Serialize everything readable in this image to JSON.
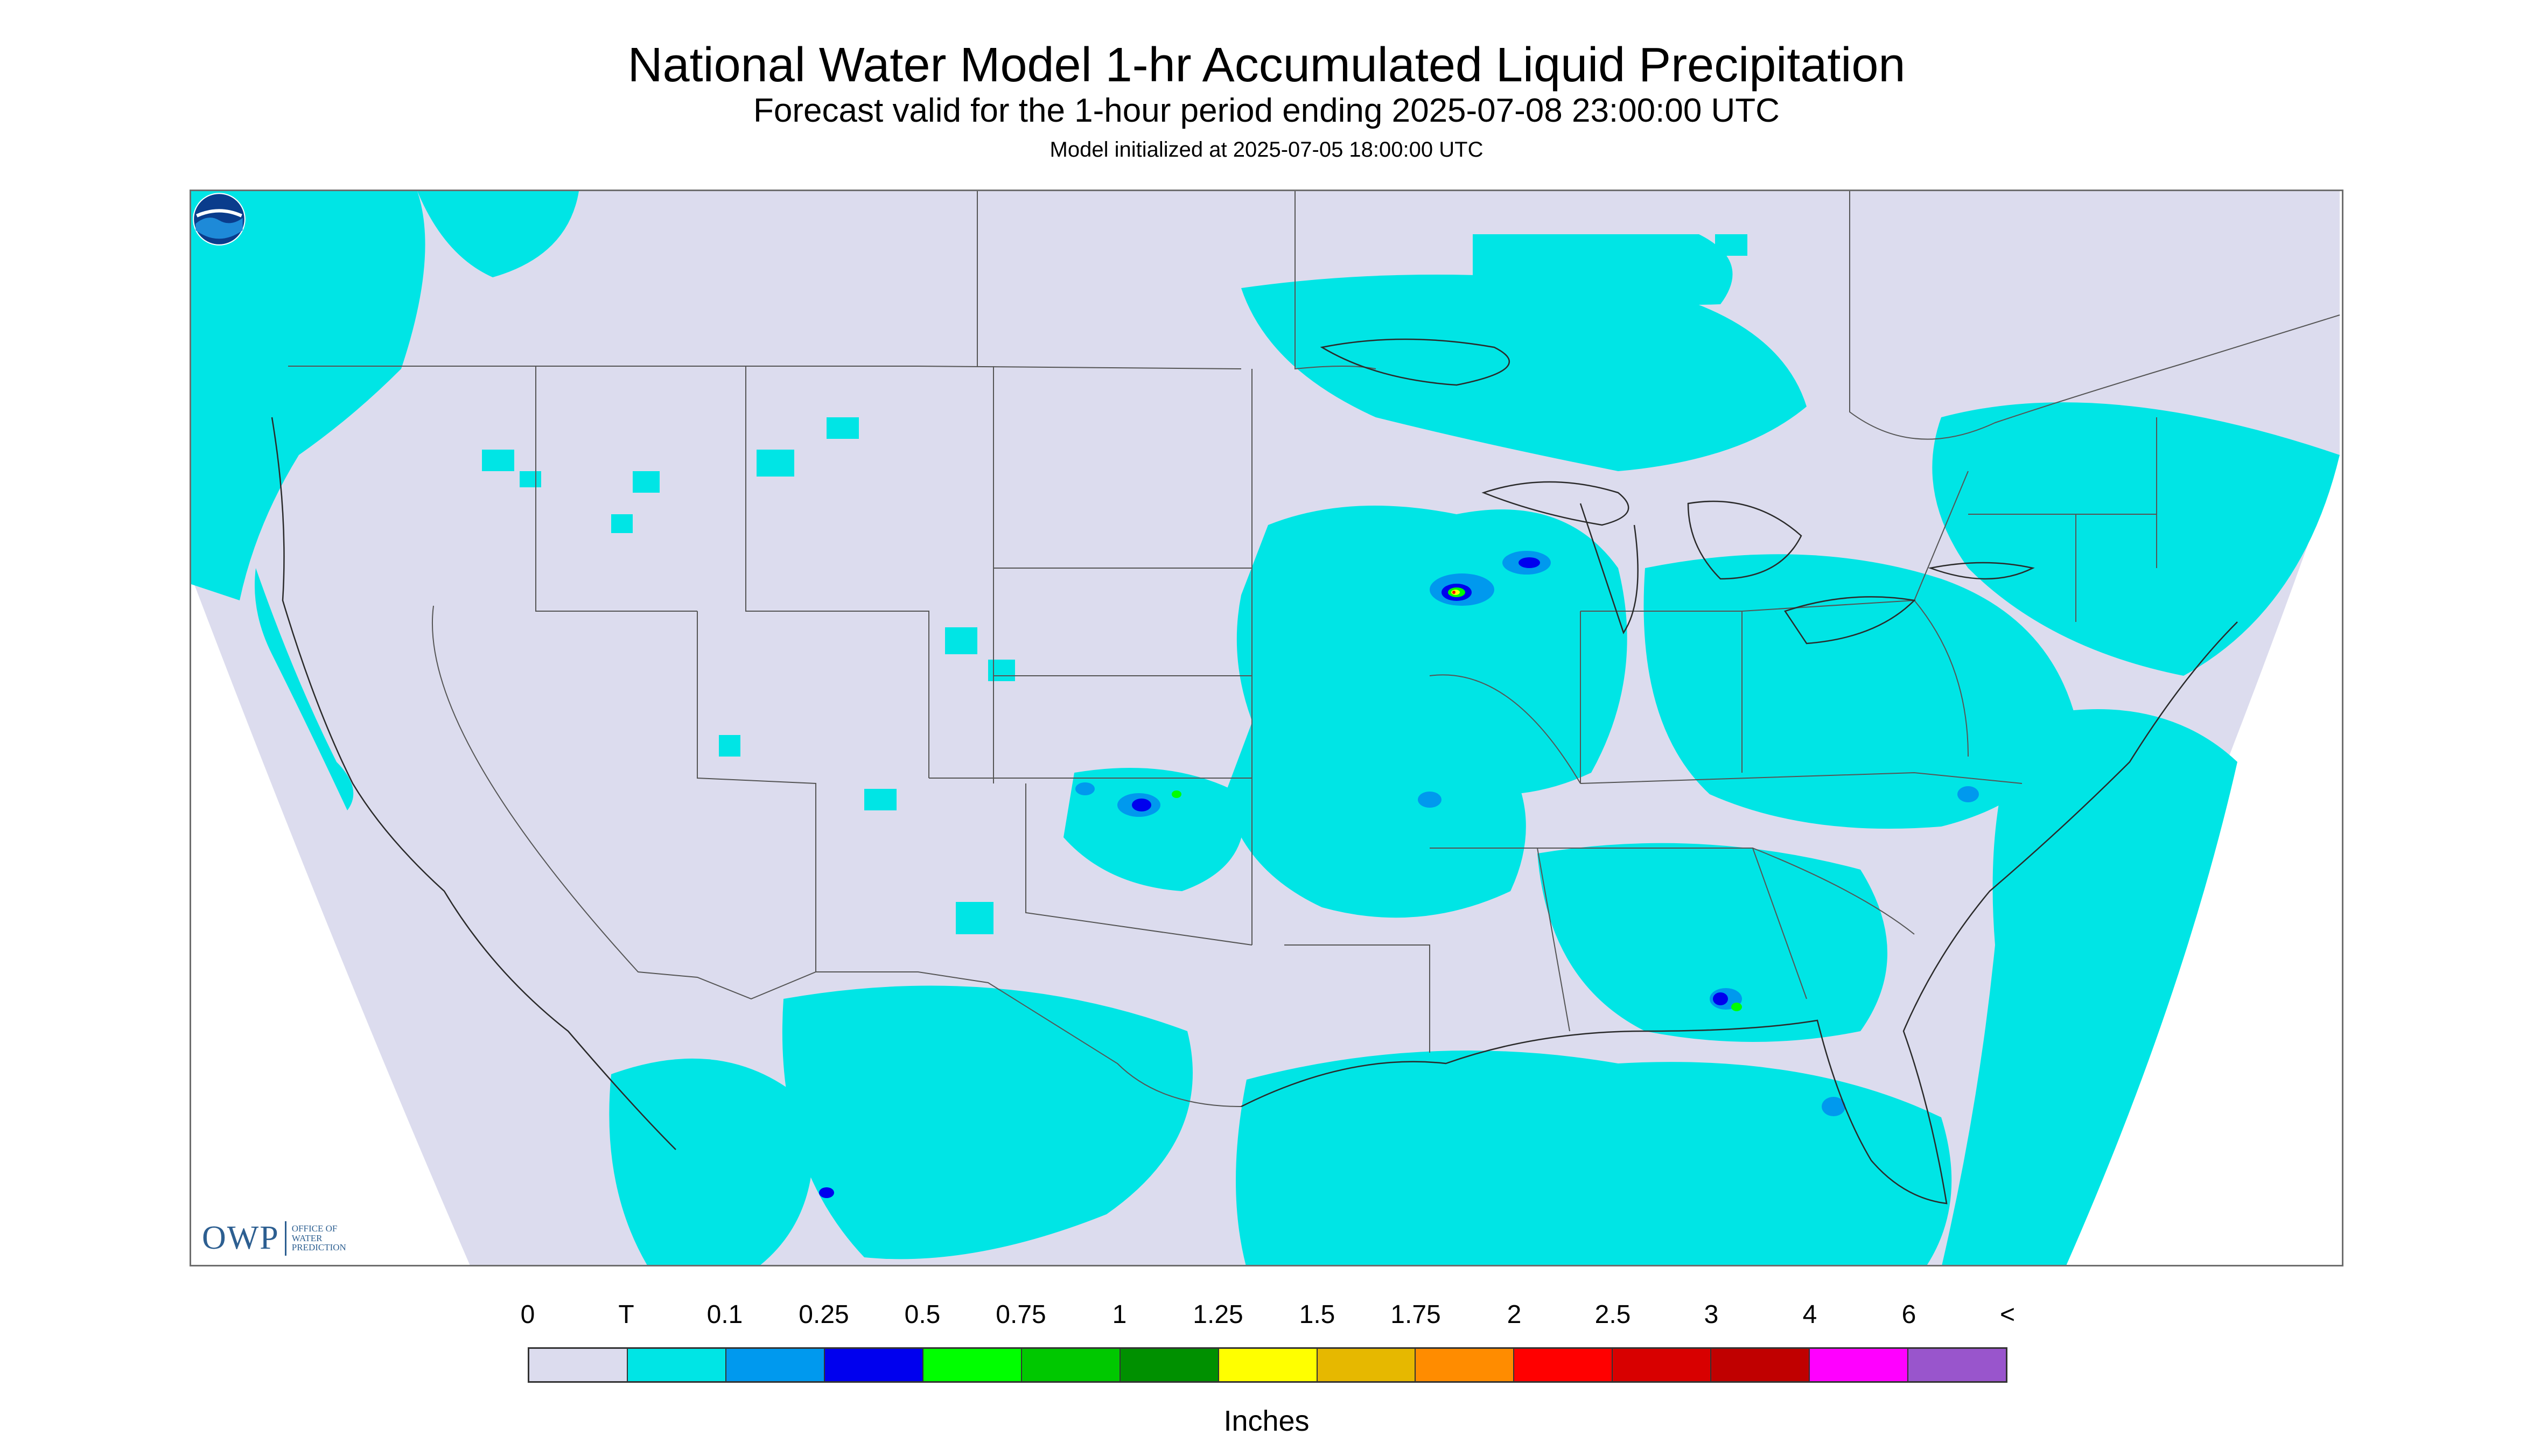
{
  "header": {
    "title": "National Water Model 1-hr Accumulated Liquid Precipitation",
    "subtitle": "Forecast valid for the 1-hour period ending 2025-07-08 23:00:00 UTC",
    "init_line": "Model initialized at 2025-07-05 18:00:00 UTC"
  },
  "map": {
    "domain_fill_color": "#dcdcee",
    "outside_color": "#ffffff",
    "border_color": "#555555",
    "region": "Continental United States with parts of southern Canada and northern Mexico",
    "colors": {
      "trace": "#00e5e5",
      "light_blue": "#0099ee",
      "blue": "#0000ee",
      "green": "#00ff00",
      "yellow": "#ffff00",
      "red": "#ff0000"
    }
  },
  "branding": {
    "owp_mark": "OWP",
    "owp_text_lines": [
      "Office of",
      "Water",
      "Prediction"
    ],
    "noaa_mark": "NOAA"
  },
  "legend": {
    "labels": [
      "0",
      "T",
      "0.1",
      "0.25",
      "0.5",
      "0.75",
      "1",
      "1.25",
      "1.5",
      "1.75",
      "2",
      "2.5",
      "3",
      "4",
      "6",
      "<"
    ],
    "colors": [
      "#dcdcee",
      "#00e5e5",
      "#0099ee",
      "#0000ee",
      "#00ff00",
      "#00c800",
      "#009000",
      "#ffff00",
      "#e6b800",
      "#ff8c00",
      "#ff0000",
      "#d80000",
      "#c00000",
      "#ff00ff",
      "#9955cc"
    ],
    "units": "Inches"
  }
}
